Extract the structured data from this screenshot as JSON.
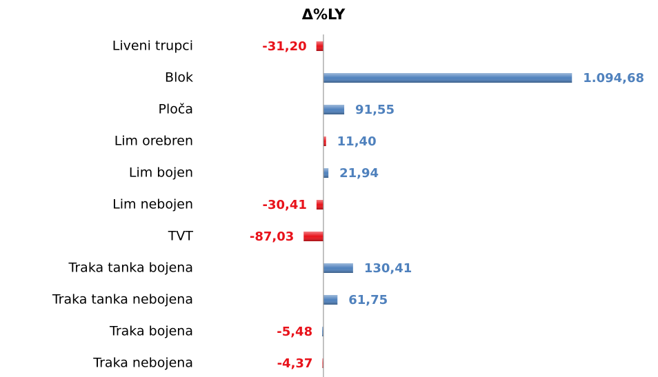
{
  "chart_data": {
    "type": "bar",
    "orientation": "horizontal",
    "title": "Δ%LY",
    "categories": [
      "Liveni trupci",
      "Blok",
      "Ploča",
      "Lim orebren",
      "Lim bojen",
      "Lim nebojen",
      "TVT",
      "Traka tanka bojena",
      "Traka tanka nebojena",
      "Traka bojena",
      "Traka nebojena"
    ],
    "values": [
      -31.2,
      1094.68,
      91.55,
      11.4,
      21.94,
      -30.41,
      -87.03,
      130.41,
      61.75,
      -5.48,
      -4.37
    ],
    "value_labels": [
      "-31,20",
      "1.094,68",
      "91,55",
      "11,40",
      "21,94",
      "-30,41",
      "-87,03",
      "130,41",
      "61,75",
      "-5,48",
      "-4,37"
    ],
    "colors": [
      "#e8121a",
      "#4f81bd",
      "#4f81bd",
      "#e8121a",
      "#4f81bd",
      "#e8121a",
      "#e8121a",
      "#4f81bd",
      "#4f81bd",
      "#4f81bd",
      "#e8121a"
    ],
    "label_colors": [
      "#e8121a",
      "#4f81bd",
      "#4f81bd",
      "#4f81bd",
      "#4f81bd",
      "#e8121a",
      "#e8121a",
      "#4f81bd",
      "#4f81bd",
      "#e8121a",
      "#e8121a"
    ],
    "xlim": [
      -100,
      1100
    ]
  }
}
